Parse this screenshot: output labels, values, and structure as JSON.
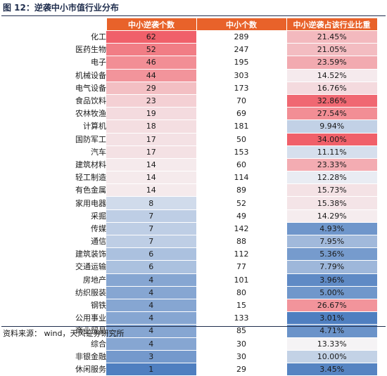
{
  "figure": {
    "title": "图 12：逆袭中小市值行业分布",
    "source": "资料来源：  wind，天风证券研究所"
  },
  "colors": {
    "header": "#e8622a",
    "high_red": "#f0606a",
    "low_blue": "#4f7fc0",
    "neutral": "#f5f5f7"
  },
  "chart_data": {
    "type": "table",
    "columns": [
      "",
      "中小逆袭个数",
      "中小个数",
      "中小逆袭占该行业比重"
    ],
    "rows": [
      {
        "industry": "化工",
        "count": "62",
        "total": "289",
        "share": "21.45%"
      },
      {
        "industry": "医药生物",
        "count": "52",
        "total": "247",
        "share": "21.05%"
      },
      {
        "industry": "电子",
        "count": "46",
        "total": "195",
        "share": "23.59%"
      },
      {
        "industry": "机械设备",
        "count": "44",
        "total": "303",
        "share": "14.52%"
      },
      {
        "industry": "电气设备",
        "count": "29",
        "total": "173",
        "share": "16.76%"
      },
      {
        "industry": "食品饮料",
        "count": "23",
        "total": "70",
        "share": "32.86%"
      },
      {
        "industry": "农林牧渔",
        "count": "19",
        "total": "69",
        "share": "27.54%"
      },
      {
        "industry": "计算机",
        "count": "18",
        "total": "181",
        "share": "9.94%"
      },
      {
        "industry": "国防军工",
        "count": "17",
        "total": "50",
        "share": "34.00%"
      },
      {
        "industry": "汽车",
        "count": "17",
        "total": "153",
        "share": "11.11%"
      },
      {
        "industry": "建筑材料",
        "count": "14",
        "total": "60",
        "share": "23.33%"
      },
      {
        "industry": "轻工制造",
        "count": "14",
        "total": "114",
        "share": "12.28%"
      },
      {
        "industry": "有色金属",
        "count": "14",
        "total": "89",
        "share": "15.73%"
      },
      {
        "industry": "家用电器",
        "count": "8",
        "total": "52",
        "share": "15.38%"
      },
      {
        "industry": "采掘",
        "count": "7",
        "total": "49",
        "share": "14.29%"
      },
      {
        "industry": "传媒",
        "count": "7",
        "total": "142",
        "share": "4.93%"
      },
      {
        "industry": "通信",
        "count": "7",
        "total": "88",
        "share": "7.95%"
      },
      {
        "industry": "建筑装饰",
        "count": "6",
        "total": "112",
        "share": "5.36%"
      },
      {
        "industry": "交通运输",
        "count": "6",
        "total": "77",
        "share": "7.79%"
      },
      {
        "industry": "房地产",
        "count": "4",
        "total": "101",
        "share": "3.96%"
      },
      {
        "industry": "纺织服装",
        "count": "4",
        "total": "80",
        "share": "5.00%"
      },
      {
        "industry": "钢铁",
        "count": "4",
        "total": "15",
        "share": "26.67%"
      },
      {
        "industry": "公用事业",
        "count": "4",
        "total": "133",
        "share": "3.01%"
      },
      {
        "industry": "商业贸易",
        "count": "4",
        "total": "85",
        "share": "4.71%"
      },
      {
        "industry": "综合",
        "count": "4",
        "total": "30",
        "share": "13.33%"
      },
      {
        "industry": "非银金融",
        "count": "3",
        "total": "30",
        "share": "10.00%"
      },
      {
        "industry": "休闲服务",
        "count": "1",
        "total": "29",
        "share": "3.45%"
      }
    ]
  }
}
